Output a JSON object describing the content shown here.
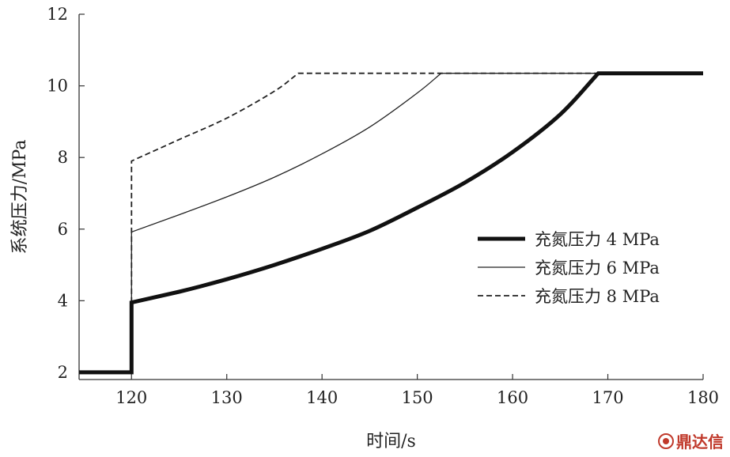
{
  "chart_data": {
    "type": "line",
    "xlabel": "时间/s",
    "ylabel": "系统压力/MPa",
    "xlim": [
      114.5,
      180
    ],
    "ylim": [
      1.8,
      12
    ],
    "xticks": [
      120,
      130,
      140,
      150,
      160,
      170,
      180
    ],
    "yticks": [
      2,
      4,
      6,
      8,
      10,
      12
    ],
    "grid": false,
    "legend_position": "right",
    "series": [
      {
        "name": "充氮压力 4 MPa",
        "style": "thick-solid",
        "x": [
          114.5,
          120,
          120,
          125,
          130,
          135,
          140,
          145,
          150,
          155,
          160,
          165,
          169,
          180
        ],
        "y": [
          2.0,
          2.0,
          3.95,
          4.25,
          4.6,
          5.0,
          5.45,
          5.95,
          6.6,
          7.3,
          8.15,
          9.2,
          10.35,
          10.35
        ]
      },
      {
        "name": "充氮压力 6 MPa",
        "style": "thin-solid",
        "x": [
          120,
          120,
          125,
          130,
          135,
          140,
          145,
          150,
          152.5,
          180
        ],
        "y": [
          2.0,
          5.92,
          6.4,
          6.9,
          7.45,
          8.1,
          8.85,
          9.8,
          10.35,
          10.35
        ]
      },
      {
        "name": "充氮压力 8 MPa",
        "style": "dashed",
        "x": [
          120,
          120,
          125,
          130,
          135,
          137.5,
          180
        ],
        "y": [
          2.0,
          7.9,
          8.5,
          9.1,
          9.85,
          10.35,
          10.35
        ]
      }
    ]
  },
  "watermark": {
    "text": "鼎达信",
    "icon": "logo-circle-icon"
  }
}
